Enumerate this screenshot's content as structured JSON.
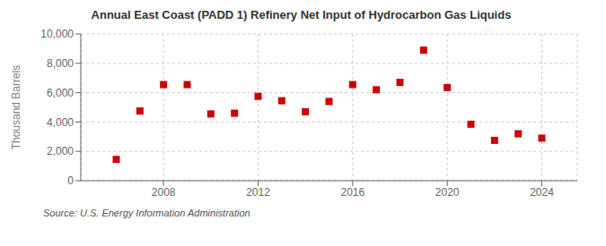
{
  "chart_data": {
    "type": "scatter",
    "title": "Annual East Coast (PADD 1) Refinery Net Input of Hydrocarbon Gas Liquids",
    "ylabel": "Thousand Barrels",
    "annotations": [
      "Source: U.S. Energy Information Administration"
    ],
    "x": [
      2006,
      2007,
      2008,
      2009,
      2010,
      2011,
      2012,
      2013,
      2014,
      2015,
      2016,
      2017,
      2018,
      2019,
      2020,
      2021,
      2022,
      2023,
      2024
    ],
    "values": [
      1450,
      4750,
      6550,
      6550,
      4550,
      4600,
      5750,
      5450,
      4700,
      5400,
      6550,
      6200,
      6700,
      8900,
      6350,
      3850,
      2750,
      3200,
      2900
    ],
    "color": "#cc0000",
    "marker": "square",
    "xlim": [
      2004.5,
      2025.5
    ],
    "xticks": [
      2008,
      2012,
      2016,
      2020,
      2024
    ],
    "ylim": [
      0,
      10000
    ],
    "yticks": [
      0,
      {
        "value": 2000,
        "label": "2,000"
      },
      {
        "value": 4000,
        "label": "4,000"
      },
      {
        "value": 6000,
        "label": "6,000"
      },
      {
        "value": 8000,
        "label": "8,000"
      },
      {
        "value": 10000,
        "label": "10,000"
      }
    ],
    "grid": true
  }
}
